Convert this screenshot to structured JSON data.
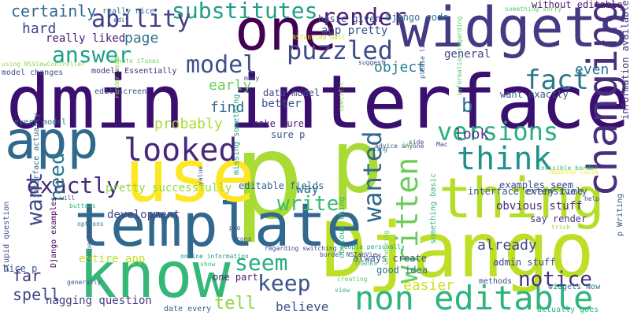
{
  "words": [
    {
      "text": "admin interface",
      "color": "#3b0f70"
    },
    {
      "text": "p",
      "color": "#a8db34"
    },
    {
      "text": "p",
      "color": "#a8db34"
    },
    {
      "text": "Django",
      "color": "#bddf26"
    },
    {
      "text": "know",
      "color": "#35b779"
    },
    {
      "text": "template",
      "color": "#31688e"
    },
    {
      "text": "use",
      "color": "#fde725"
    },
    {
      "text": "thing",
      "color": "#b5de2b"
    },
    {
      "text": "widgets",
      "color": "#443983"
    },
    {
      "text": "one",
      "color": "#440154"
    },
    {
      "text": "app",
      "color": "#31688e"
    },
    {
      "text": "non editable",
      "color": "#2fb47c"
    },
    {
      "text": "changing",
      "color": "#472f7d"
    },
    {
      "text": "looked",
      "color": "#482878"
    },
    {
      "text": "think",
      "color": "#21918c"
    },
    {
      "text": "written",
      "color": "#6ccd5a"
    },
    {
      "text": "wanted",
      "color": "#31688e"
    },
    {
      "text": "versions",
      "color": "#29af7f"
    },
    {
      "text": "fact",
      "color": "#2a788e"
    },
    {
      "text": "model",
      "color": "#3b528b"
    },
    {
      "text": "puzzled",
      "color": "#3e4a89"
    },
    {
      "text": "render",
      "color": "#482173"
    },
    {
      "text": "substitutes",
      "color": "#1f9e89"
    },
    {
      "text": "ability",
      "color": "#424086"
    },
    {
      "text": "answer",
      "color": "#1fa187"
    },
    {
      "text": "certainly",
      "color": "#31688e"
    },
    {
      "text": "hard",
      "color": "#414487"
    },
    {
      "text": "page",
      "color": "#2c728e"
    },
    {
      "text": "really liked",
      "color": "#482173"
    },
    {
      "text": "app pretty",
      "color": "#3b528b"
    },
    {
      "text": "general",
      "color": "#414487"
    },
    {
      "text": "object",
      "color": "#277f8e"
    },
    {
      "text": "even",
      "color": "#2c728e"
    },
    {
      "text": "exactly",
      "color": "#482878"
    },
    {
      "text": "want",
      "color": "#3e4a89"
    },
    {
      "text": "need",
      "color": "#2a788e"
    },
    {
      "text": "write",
      "color": "#3aba76"
    },
    {
      "text": "seem",
      "color": "#26ad81"
    },
    {
      "text": "keep",
      "color": "#3b528b"
    },
    {
      "text": "notice",
      "color": "#46327e"
    },
    {
      "text": "tell",
      "color": "#8fd744"
    },
    {
      "text": "believe",
      "color": "#3b528b"
    },
    {
      "text": "easier",
      "color": "#d0e11c"
    },
    {
      "text": "spell",
      "color": "#3e4a89"
    },
    {
      "text": "far",
      "color": "#46337e"
    },
    {
      "text": "already",
      "color": "#414487"
    },
    {
      "text": "way",
      "color": "#2c728e"
    },
    {
      "text": "look",
      "color": "#453781"
    },
    {
      "text": "find",
      "color": "#31688e"
    },
    {
      "text": "b",
      "color": "#2e6e8e"
    },
    {
      "text": "probably",
      "color": "#addc30"
    },
    {
      "text": "early",
      "color": "#6ece58"
    },
    {
      "text": "better",
      "color": "#3b528b"
    },
    {
      "text": "development",
      "color": "#404688"
    },
    {
      "text": "pretty successfully",
      "color": "#93d741"
    },
    {
      "text": "make sure",
      "color": "#482071"
    },
    {
      "text": "sure p",
      "color": "#3d4d8a"
    },
    {
      "text": "data model",
      "color": "#3f4889"
    },
    {
      "text": "want exactly",
      "color": "#3b528b"
    },
    {
      "text": "obvious stuff",
      "color": "#472a7a"
    },
    {
      "text": "entire app",
      "color": "#bddf26"
    },
    {
      "text": "nagging question",
      "color": "#443a83"
    },
    {
      "text": "one part",
      "color": "#481c6e"
    },
    {
      "text": "admin stuff",
      "color": "#404588"
    },
    {
      "text": "always create",
      "color": "#3a548c"
    },
    {
      "text": "good idea",
      "color": "#2d718e"
    },
    {
      "text": "editable fields",
      "color": "#32648e"
    },
    {
      "text": "interface extensively",
      "color": "#3b528b"
    },
    {
      "text": "say render",
      "color": "#46337e"
    },
    {
      "text": "every time",
      "color": "#38598c"
    },
    {
      "text": "examples seem",
      "color": "#3f4889"
    },
    {
      "text": "Django code",
      "color": "#2c728e"
    },
    {
      "text": "basic given",
      "color": "#3b528b"
    },
    {
      "text": "really nice",
      "color": "#2a788e"
    },
    {
      "text": "without editable",
      "color": "#481769"
    },
    {
      "text": "information available",
      "color": "#472d7b"
    },
    {
      "text": "model changes",
      "color": "#3b528b"
    },
    {
      "text": "every model",
      "color": "#2c728e"
    },
    {
      "text": "stupid question",
      "color": "#3e4c8a"
    },
    {
      "text": "Django examples",
      "color": "#440154"
    },
    {
      "text": "interface actually",
      "color": "#2f6c8e"
    },
    {
      "text": "nice p",
      "color": "#3b528b"
    },
    {
      "text": "edit screen",
      "color": "#3b528b"
    },
    {
      "text": "models Essentially",
      "color": "#472d7b"
    },
    {
      "text": "widgets Now",
      "color": "#2c728e"
    },
    {
      "text": "actually goes",
      "color": "#2fb47c"
    },
    {
      "text": "methods",
      "color": "#3b528b"
    },
    {
      "text": "date every",
      "color": "#31688e"
    },
    {
      "text": "p Writing",
      "color": "#3b528b"
    },
    {
      "text": "NSTabView mall",
      "color": "#d0e11c"
    },
    {
      "text": "iPhoto iTunes",
      "color": "#6ccd5a"
    },
    {
      "text": "using NSViewController",
      "color": "#8fd744"
    },
    {
      "text": "something sorry",
      "color": "#5ec962"
    },
    {
      "text": "Cocoa Touch",
      "color": "#3b528b"
    },
    {
      "text": "online information",
      "color": "#1f9e89"
    },
    {
      "text": "border NSTabView",
      "color": "#3b528b"
    },
    {
      "text": "regarding switching",
      "color": "#3f4889"
    },
    {
      "text": "people personally",
      "color": "#1fa187"
    },
    {
      "text": "missing something",
      "color": "#20a386"
    },
    {
      "text": "obvious thing",
      "color": "#35b779"
    },
    {
      "text": "something basic",
      "color": "#35b779"
    },
    {
      "text": "information regarding",
      "color": "#5ec962"
    },
    {
      "text": "invisible border",
      "color": "#35b779"
    },
    {
      "text": "advice anyone",
      "color": "#3b528b"
    },
    {
      "text": "desktop Cocoa",
      "color": "#fde725"
    },
    {
      "text": "please list",
      "color": "#3b528b"
    },
    {
      "text": "render read",
      "color": "#8fd744"
    },
    {
      "text": "buttons",
      "color": "#35b779"
    },
    {
      "text": "options",
      "color": "#2a788e"
    },
    {
      "text": "creating",
      "color": "#5ec962"
    },
    {
      "text": "wondering",
      "color": "#6ccd5a"
    },
    {
      "text": "Thanks",
      "color": "#35b779"
    },
    {
      "text": "view",
      "color": "#35b779"
    },
    {
      "text": "generally",
      "color": "#3b528b"
    },
    {
      "text": "show",
      "color": "#35b779"
    },
    {
      "text": "suggest",
      "color": "#3b528b"
    },
    {
      "text": "specific",
      "color": "#8fd744"
    },
    {
      "text": "side",
      "color": "#3b528b"
    },
    {
      "text": "using",
      "color": "#2a788e"
    },
    {
      "text": "lot",
      "color": "#8fd744"
    },
    {
      "text": "Mac",
      "color": "#3b528b"
    },
    {
      "text": "trick",
      "color": "#8fd744"
    },
    {
      "text": "help",
      "color": "#3b528b"
    },
    {
      "text": "pro",
      "color": "#3b528b"
    },
    {
      "text": "cons",
      "color": "#3b528b"
    },
    {
      "text": "value",
      "color": "#3b528b"
    },
    {
      "text": "will",
      "color": "#3b528b"
    },
    {
      "text": "many",
      "color": "#3b528b"
    },
    {
      "text": "edit",
      "color": "#3b528b"
    }
  ]
}
